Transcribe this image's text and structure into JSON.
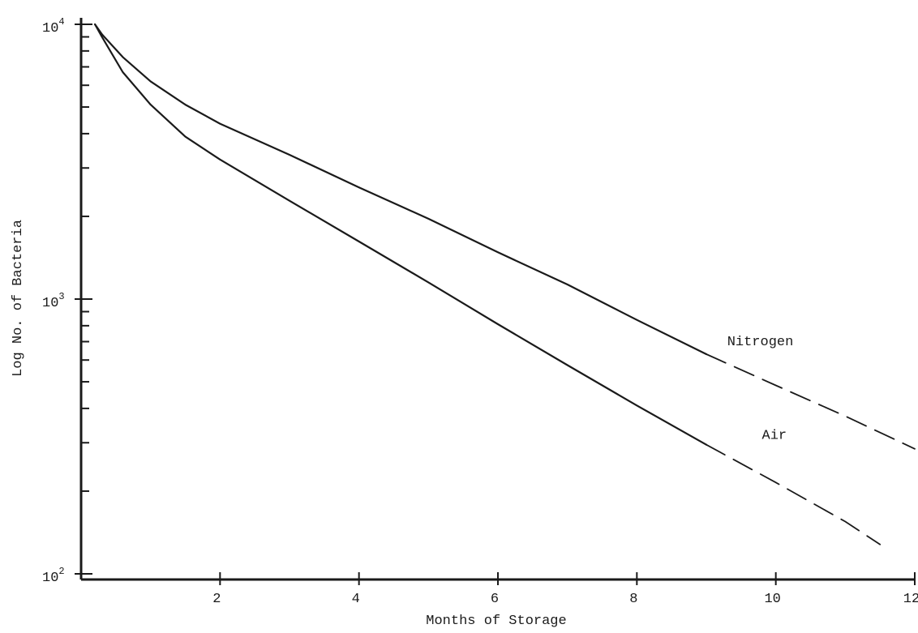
{
  "chart_data": {
    "type": "line",
    "title": "",
    "xlabel": "Months of Storage",
    "ylabel": "Log No. of Bacteria",
    "xlim": [
      0,
      12
    ],
    "ylim": [
      100,
      10000
    ],
    "y_scale": "log",
    "grid": false,
    "legend": "labels at right end of each line",
    "x_ticks": [
      {
        "value": 2,
        "label": "2"
      },
      {
        "value": 4,
        "label": "4"
      },
      {
        "value": 6,
        "label": "6"
      },
      {
        "value": 8,
        "label": "8"
      },
      {
        "value": 10,
        "label": "10"
      },
      {
        "value": 12,
        "label": "12"
      }
    ],
    "y_ticks": [
      {
        "value": 100,
        "base": "10",
        "exp": "2"
      },
      {
        "value": 1000,
        "base": "10",
        "exp": "3"
      },
      {
        "value": 10000,
        "base": "10",
        "exp": "4"
      }
    ],
    "series": [
      {
        "name": "Nitrogen",
        "label_anchor": {
          "x": 9.3,
          "y": 680
        },
        "solid": {
          "x": [
            0.2,
            0.3,
            0.6,
            1.0,
            1.5,
            2.0,
            3.0,
            4.0,
            5.0,
            6.0,
            7.0,
            8.0,
            9.0
          ],
          "y": [
            10000,
            9200,
            7600,
            6200,
            5100,
            4350,
            3350,
            2550,
            1960,
            1480,
            1130,
            840,
            630
          ]
        },
        "projected": {
          "x": [
            9.0,
            10.0,
            11.0,
            12.0
          ],
          "y": [
            630,
            485,
            375,
            285
          ]
        }
      },
      {
        "name": "Air",
        "label_anchor": {
          "x": 9.8,
          "y": 310
        },
        "solid": {
          "x": [
            0.2,
            0.3,
            0.6,
            1.0,
            1.5,
            2.0,
            3.0,
            4.0,
            5.0,
            6.0,
            7.0,
            8.0,
            9.0
          ],
          "y": [
            10000,
            9000,
            6700,
            5100,
            3900,
            3220,
            2280,
            1620,
            1150,
            810,
            575,
            410,
            295
          ]
        },
        "projected": {
          "x": [
            9.0,
            10.0,
            11.0,
            11.5
          ],
          "y": [
            295,
            215,
            155,
            128
          ]
        }
      }
    ]
  }
}
